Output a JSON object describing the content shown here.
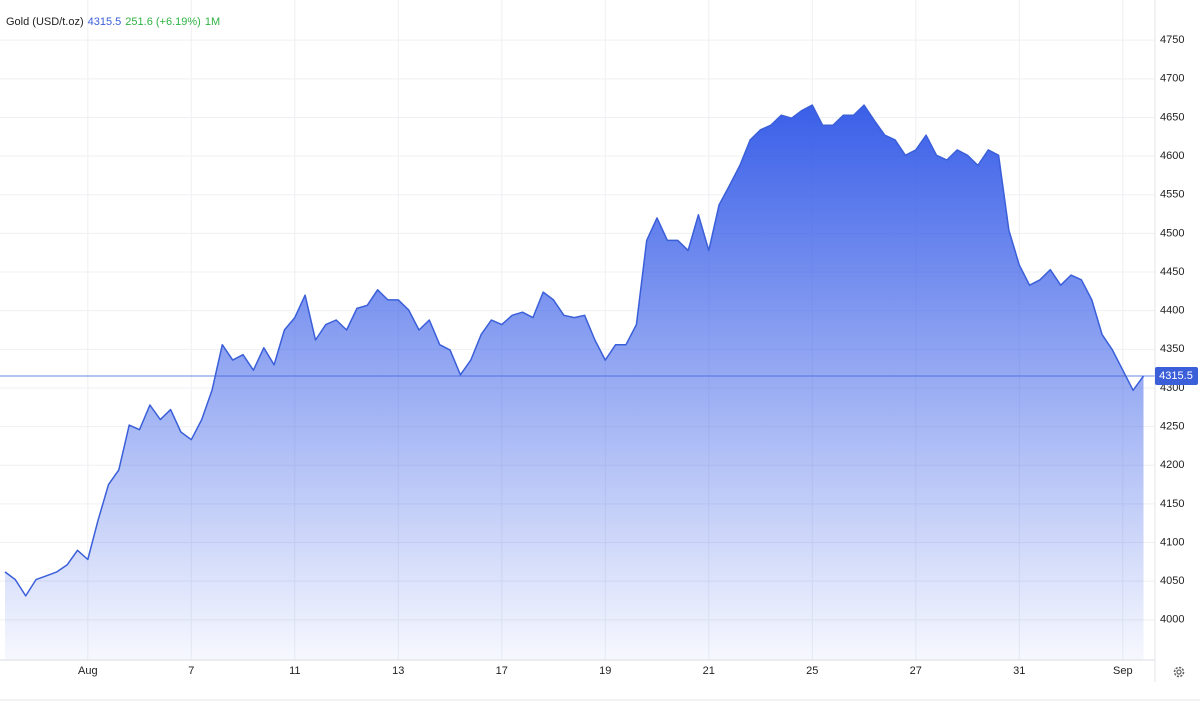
{
  "chart_data": {
    "type": "area",
    "title": "Gold (USD/t.oz)",
    "change": "251.6 (+6.19%)",
    "period": "1M",
    "categories": [
      null,
      null,
      null,
      null,
      null,
      null,
      null,
      null,
      "Aug",
      null,
      null,
      null,
      null,
      null,
      null,
      null,
      null,
      null,
      "7",
      null,
      null,
      null,
      null,
      null,
      null,
      null,
      null,
      null,
      "11",
      null,
      null,
      null,
      null,
      null,
      null,
      null,
      null,
      null,
      "13",
      null,
      null,
      null,
      null,
      null,
      null,
      null,
      null,
      null,
      "17",
      null,
      null,
      null,
      null,
      null,
      null,
      null,
      null,
      null,
      "19",
      null,
      null,
      null,
      null,
      null,
      null,
      null,
      null,
      null,
      "21",
      null,
      null,
      null,
      null,
      null,
      null,
      null,
      null,
      null,
      "25",
      null,
      null,
      null,
      null,
      null,
      null,
      null,
      null,
      null,
      "27",
      null,
      null,
      null,
      null,
      null,
      null,
      null,
      null,
      null,
      "31",
      null,
      null,
      null,
      null,
      null,
      null,
      null,
      null,
      null,
      "Sep",
      null,
      null
    ],
    "values": [
      4062,
      4052,
      4031,
      4052,
      4057,
      4062,
      4071,
      4090,
      4078,
      4129,
      4175,
      4194,
      4252,
      4246,
      4278,
      4259,
      4272,
      4243,
      4233,
      4259,
      4297,
      4356,
      4336,
      4343,
      4323,
      4352,
      4330,
      4375,
      4391,
      4420,
      4362,
      4382,
      4388,
      4375,
      4403,
      4407,
      4427,
      4414,
      4414,
      4401,
      4375,
      4388,
      4356,
      4349,
      4317,
      4336,
      4369,
      4388,
      4382,
      4394,
      4398,
      4391,
      4424,
      4414,
      4394,
      4391,
      4394,
      4362,
      4336,
      4356,
      4356,
      4382,
      4491,
      4520,
      4491,
      4491,
      4478,
      4524,
      4478,
      4537,
      4562,
      4588,
      4621,
      4634,
      4640,
      4653,
      4649,
      4659,
      4666,
      4640,
      4640,
      4653,
      4653,
      4666,
      4646,
      4627,
      4621,
      4601,
      4608,
      4627,
      4601,
      4595,
      4608,
      4601,
      4588,
      4608,
      4601,
      4504,
      4459,
      4433,
      4440,
      4453,
      4433,
      4446,
      4440,
      4414,
      4369,
      4349,
      4323,
      4297,
      4315.5
    ],
    "color": "#3a5fd9",
    "ylim": [
      3948,
      4802
    ],
    "yticks": [
      4000,
      4050,
      4100,
      4150,
      4200,
      4250,
      4300,
      4350,
      4400,
      4450,
      4500,
      4550,
      4600,
      4650,
      4700,
      4750
    ],
    "grid": true
  }
}
